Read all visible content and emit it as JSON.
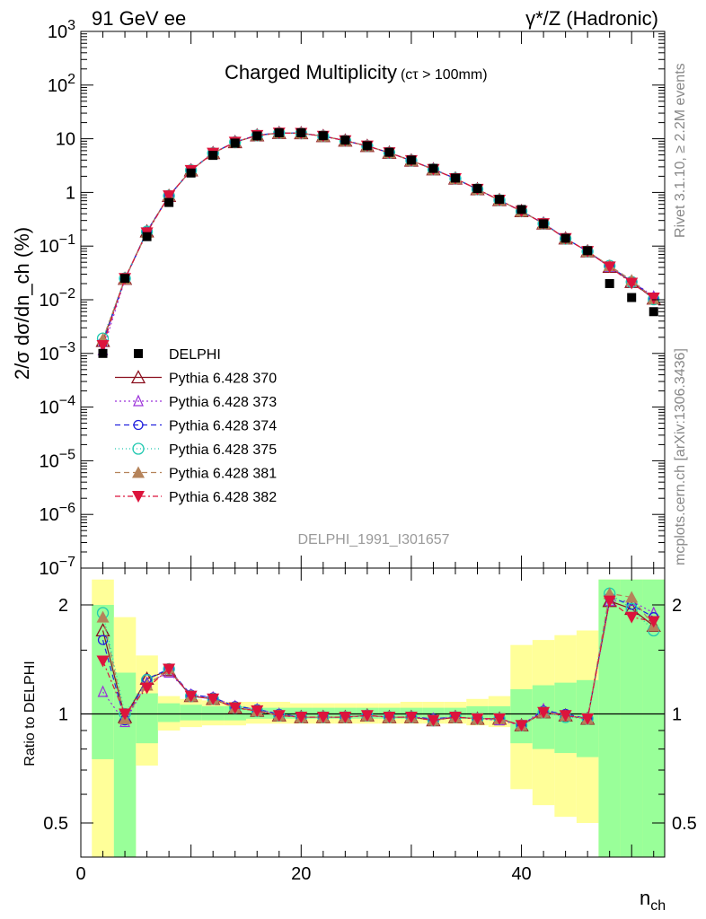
{
  "header": {
    "left": "91 GeV ee",
    "right": "γ*/Z (Hadronic)"
  },
  "side_notes": {
    "rivet": "Rivet 3.1.10, ≥ 2.2M events",
    "mcplots": "mcplots.cern.ch [arXiv:1306.3436]"
  },
  "analysis_id": "DELPHI_1991_I301657",
  "chart_data": {
    "type": "scatter",
    "title_main": "Charged Multiplicity",
    "title_sub": "(cτ > 100mm)",
    "xlabel_main": "n",
    "xlabel_sub": "ch",
    "ylabel": "2/σ dσ/dn_ch (%)",
    "ratio_ylabel": "Ratio to DELPHI",
    "xlim": [
      0,
      53
    ],
    "ylim_log": [
      1e-07,
      1000
    ],
    "ratio_ylim": [
      0.35,
      2.35
    ],
    "x_ticks": [
      "0",
      "20",
      "40"
    ],
    "y_ticks": [
      "10^-7",
      "10^-6",
      "10^-5",
      "10^-4",
      "10^-3",
      "10^-2",
      "10^-1",
      "1",
      "10",
      "10^2",
      "10^3"
    ],
    "ratio_ticks": [
      "0.5",
      "1",
      "2"
    ],
    "legend_placement": "left-middle",
    "x": [
      2,
      4,
      6,
      8,
      10,
      12,
      14,
      16,
      18,
      20,
      22,
      24,
      26,
      28,
      30,
      32,
      34,
      36,
      38,
      40,
      42,
      44,
      46,
      48,
      50,
      52
    ],
    "data": {
      "name": "DELPHI",
      "values": [
        0.001,
        0.025,
        0.15,
        0.65,
        2.3,
        4.9,
        8.3,
        11.3,
        12.9,
        12.9,
        11.4,
        9.4,
        7.4,
        5.6,
        4.0,
        2.8,
        1.85,
        1.18,
        0.74,
        0.48,
        0.26,
        0.14,
        0.082,
        0.02,
        0.011,
        0.006
      ],
      "band_inner": [
        [
          0.75,
          2.0
        ],
        [
          0.4,
          1.3
        ],
        [
          0.83,
          1.14
        ],
        [
          0.95,
          1.07
        ],
        [
          0.96,
          1.06
        ],
        [
          0.96,
          1.05
        ],
        [
          0.96,
          1.05
        ],
        [
          0.97,
          1.04
        ],
        [
          0.97,
          1.04
        ],
        [
          0.97,
          1.04
        ],
        [
          0.97,
          1.04
        ],
        [
          0.97,
          1.04
        ],
        [
          0.97,
          1.04
        ],
        [
          0.97,
          1.04
        ],
        [
          0.97,
          1.04
        ],
        [
          0.97,
          1.04
        ],
        [
          0.97,
          1.04
        ],
        [
          0.97,
          1.05
        ],
        [
          0.96,
          1.05
        ],
        [
          0.83,
          1.17
        ],
        [
          0.8,
          1.2
        ],
        [
          0.78,
          1.22
        ],
        [
          0.76,
          1.24
        ],
        [
          0.3,
          2.5
        ],
        [
          0.3,
          2.5
        ],
        [
          0.3,
          2.5
        ]
      ],
      "band_outer": [
        [
          0.3,
          2.5
        ],
        [
          0.3,
          1.85
        ],
        [
          0.72,
          1.45
        ],
        [
          0.9,
          1.12
        ],
        [
          0.92,
          1.1
        ],
        [
          0.93,
          1.09
        ],
        [
          0.93,
          1.08
        ],
        [
          0.94,
          1.08
        ],
        [
          0.94,
          1.08
        ],
        [
          0.94,
          1.07
        ],
        [
          0.94,
          1.07
        ],
        [
          0.94,
          1.07
        ],
        [
          0.94,
          1.07
        ],
        [
          0.94,
          1.07
        ],
        [
          0.94,
          1.08
        ],
        [
          0.94,
          1.08
        ],
        [
          0.94,
          1.08
        ],
        [
          0.93,
          1.1
        ],
        [
          0.92,
          1.12
        ],
        [
          0.62,
          1.55
        ],
        [
          0.56,
          1.6
        ],
        [
          0.52,
          1.65
        ],
        [
          0.5,
          1.7
        ],
        [
          0.3,
          2.5
        ],
        [
          0.3,
          2.5
        ],
        [
          0.3,
          2.5
        ]
      ]
    },
    "series": [
      {
        "name": "Pythia 6.428 370",
        "color": "#8b0f1e",
        "dash": "",
        "marker": "triangle-open",
        "ratio": [
          1.7,
          0.98,
          1.25,
          1.32,
          1.12,
          1.1,
          1.04,
          1.02,
          0.99,
          0.98,
          0.98,
          0.98,
          0.99,
          0.98,
          0.98,
          0.96,
          0.98,
          0.97,
          0.97,
          0.93,
          1.01,
          0.99,
          0.97,
          2.05,
          1.95,
          1.75
        ]
      },
      {
        "name": "Pythia 6.428 373",
        "color": "#9b30d9",
        "dash": "2,3",
        "marker": "triangle-open-small",
        "ratio": [
          1.15,
          0.95,
          1.22,
          1.3,
          1.13,
          1.11,
          1.05,
          1.03,
          1.0,
          0.98,
          0.98,
          0.98,
          0.99,
          0.98,
          0.98,
          0.97,
          0.98,
          0.97,
          0.96,
          0.93,
          1.03,
          0.99,
          0.97,
          2.05,
          2.05,
          1.9
        ]
      },
      {
        "name": "Pythia 6.428 374",
        "color": "#2222dd",
        "dash": "6,4",
        "marker": "circle-open",
        "ratio": [
          1.6,
          0.96,
          1.25,
          1.33,
          1.13,
          1.11,
          1.05,
          1.03,
          1.0,
          0.98,
          0.98,
          0.98,
          0.99,
          0.98,
          0.98,
          0.97,
          0.98,
          0.97,
          0.97,
          0.93,
          1.02,
          1.0,
          0.97,
          2.1,
          2.0,
          1.85
        ]
      },
      {
        "name": "Pythia 6.428 375",
        "color": "#20c8b0",
        "dash": "1,3",
        "marker": "circle-open-large",
        "ratio": [
          1.9,
          1.0,
          1.24,
          1.33,
          1.12,
          1.1,
          1.04,
          1.02,
          0.99,
          0.98,
          0.98,
          0.98,
          0.99,
          0.98,
          0.98,
          0.96,
          0.98,
          0.97,
          0.97,
          0.93,
          1.01,
          0.98,
          0.97,
          2.15,
          1.95,
          1.7
        ]
      },
      {
        "name": "Pythia 6.428 381",
        "color": "#b5835a",
        "dash": "6,4",
        "marker": "triangle-filled",
        "ratio": [
          1.85,
          0.97,
          1.2,
          1.33,
          1.12,
          1.1,
          1.04,
          1.02,
          0.99,
          0.98,
          0.98,
          0.98,
          0.99,
          0.98,
          0.98,
          0.96,
          0.98,
          0.97,
          0.97,
          0.93,
          1.01,
          0.99,
          0.97,
          2.15,
          2.1,
          1.75
        ]
      },
      {
        "name": "Pythia 6.428 382",
        "color": "#dc143c",
        "dash": "6,3,2,3",
        "marker": "triangle-down-filled",
        "ratio": [
          1.4,
          1.0,
          1.18,
          1.33,
          1.12,
          1.1,
          1.04,
          1.02,
          0.99,
          0.98,
          0.98,
          0.98,
          0.99,
          0.98,
          0.98,
          0.96,
          0.98,
          0.97,
          0.97,
          0.93,
          1.01,
          0.99,
          0.97,
          2.05,
          1.85,
          1.8
        ]
      }
    ]
  }
}
